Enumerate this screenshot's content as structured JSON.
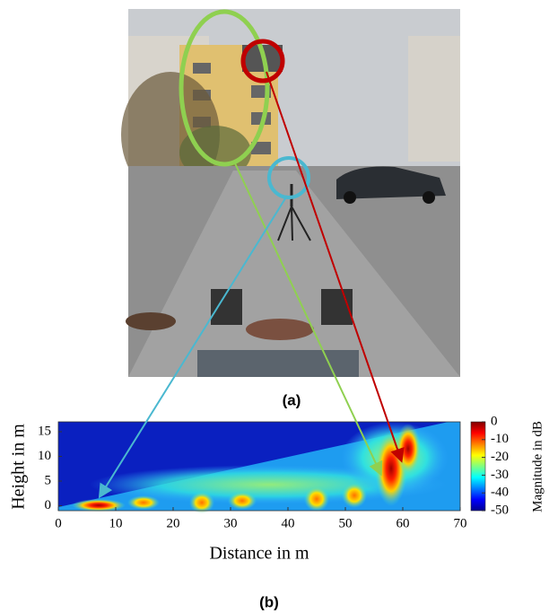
{
  "figure": {
    "caption_a": "(a)",
    "caption_b": "(b)",
    "plot": {
      "x_label": "Distance in m",
      "y_label": "Height in m",
      "xlim": [
        0,
        70
      ],
      "xticks": [
        0,
        10,
        20,
        30,
        40,
        50,
        60,
        70
      ],
      "ylim": [
        -1,
        17
      ],
      "yticks": [
        0,
        5,
        10,
        15
      ],
      "colorbar": {
        "label": "Magnitude in dB",
        "lim": [
          -50,
          0
        ],
        "ticks": [
          0,
          -10,
          -20,
          -30,
          -40,
          -50
        ]
      }
    }
  }
}
